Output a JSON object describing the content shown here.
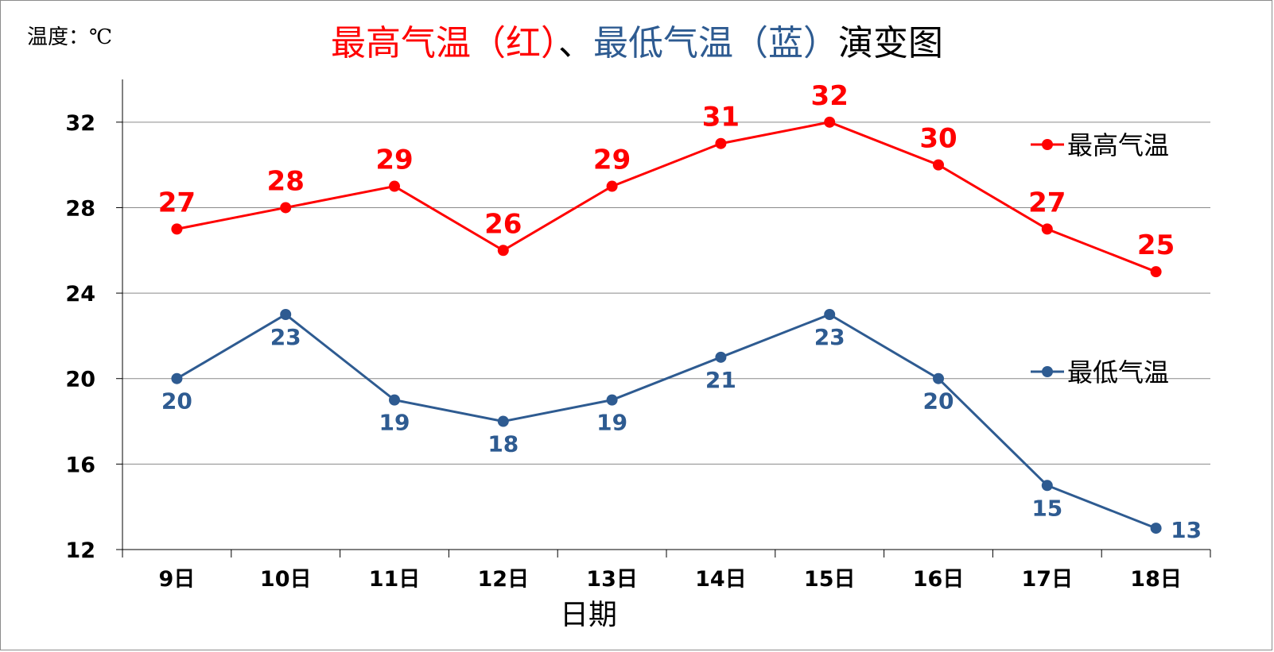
{
  "unit_label": "温度：℃",
  "title_parts": [
    {
      "text": "最高气温（红）",
      "color": "#ff0000"
    },
    {
      "text": "、",
      "color": "#000000"
    },
    {
      "text": "最低气温（蓝）",
      "color": "#2e5b91"
    },
    {
      "text": "演变图",
      "color": "#000000"
    }
  ],
  "chart_data": {
    "type": "line",
    "title": "最高气温（红）、最低气温（蓝）演变图",
    "ylabel": "温度：℃",
    "xlabel": "日期",
    "categories": [
      "9日",
      "10日",
      "11日",
      "12日",
      "13日",
      "14日",
      "15日",
      "16日",
      "17日",
      "18日"
    ],
    "ylim": [
      12,
      34
    ],
    "yticks": [
      12,
      16,
      20,
      24,
      28,
      32
    ],
    "grid": true,
    "legend_position": "right",
    "series": [
      {
        "name": "最高气温",
        "color": "#ff0000",
        "values": [
          27,
          28,
          29,
          26,
          29,
          31,
          32,
          30,
          27,
          25
        ],
        "label_position": "above"
      },
      {
        "name": "最低气温",
        "color": "#2e5b91",
        "values": [
          20,
          23,
          19,
          18,
          19,
          21,
          23,
          20,
          15,
          13
        ],
        "label_position": "below"
      }
    ]
  }
}
